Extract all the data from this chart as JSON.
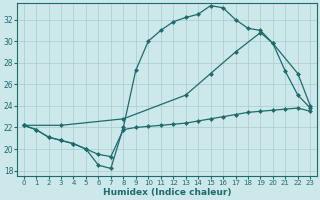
{
  "background_color": "#cde8eb",
  "grid_color": "#a8ccce",
  "line_color": "#1e6b6b",
  "xlabel": "Humidex (Indice chaleur)",
  "xlim": [
    -0.5,
    23.5
  ],
  "ylim": [
    17.5,
    33.5
  ],
  "yticks": [
    18,
    20,
    22,
    24,
    26,
    28,
    30,
    32
  ],
  "xticks": [
    0,
    1,
    2,
    3,
    4,
    5,
    6,
    7,
    8,
    9,
    10,
    11,
    12,
    13,
    14,
    15,
    16,
    17,
    18,
    19,
    20,
    21,
    22,
    23
  ],
  "line1_x": [
    0,
    1,
    2,
    3,
    4,
    5,
    6,
    7,
    8,
    9,
    10,
    11,
    12,
    13,
    14,
    15,
    16,
    17,
    18,
    19,
    20,
    21,
    22,
    23
  ],
  "line1_y": [
    22.2,
    21.8,
    21.1,
    20.8,
    20.5,
    20.0,
    19.5,
    19.3,
    21.8,
    22.0,
    22.1,
    22.2,
    22.3,
    22.4,
    22.6,
    22.8,
    23.0,
    23.2,
    23.4,
    23.5,
    23.6,
    23.7,
    23.8,
    23.5
  ],
  "line2_x": [
    0,
    1,
    2,
    3,
    4,
    5,
    6,
    7,
    8,
    9,
    10,
    11,
    12,
    13,
    14,
    15,
    16,
    17,
    18,
    19,
    20,
    21,
    22,
    23
  ],
  "line2_y": [
    22.2,
    21.8,
    21.1,
    20.8,
    20.5,
    20.0,
    18.5,
    18.2,
    22.0,
    27.3,
    30.0,
    31.0,
    31.8,
    32.2,
    32.5,
    33.3,
    33.1,
    32.0,
    31.2,
    31.0,
    29.8,
    27.2,
    25.0,
    23.8
  ],
  "line3_x": [
    0,
    3,
    8,
    13,
    15,
    17,
    19,
    20,
    22,
    23
  ],
  "line3_y": [
    22.2,
    22.2,
    22.8,
    25.0,
    27.0,
    29.0,
    30.8,
    29.8,
    27.0,
    24.0
  ]
}
